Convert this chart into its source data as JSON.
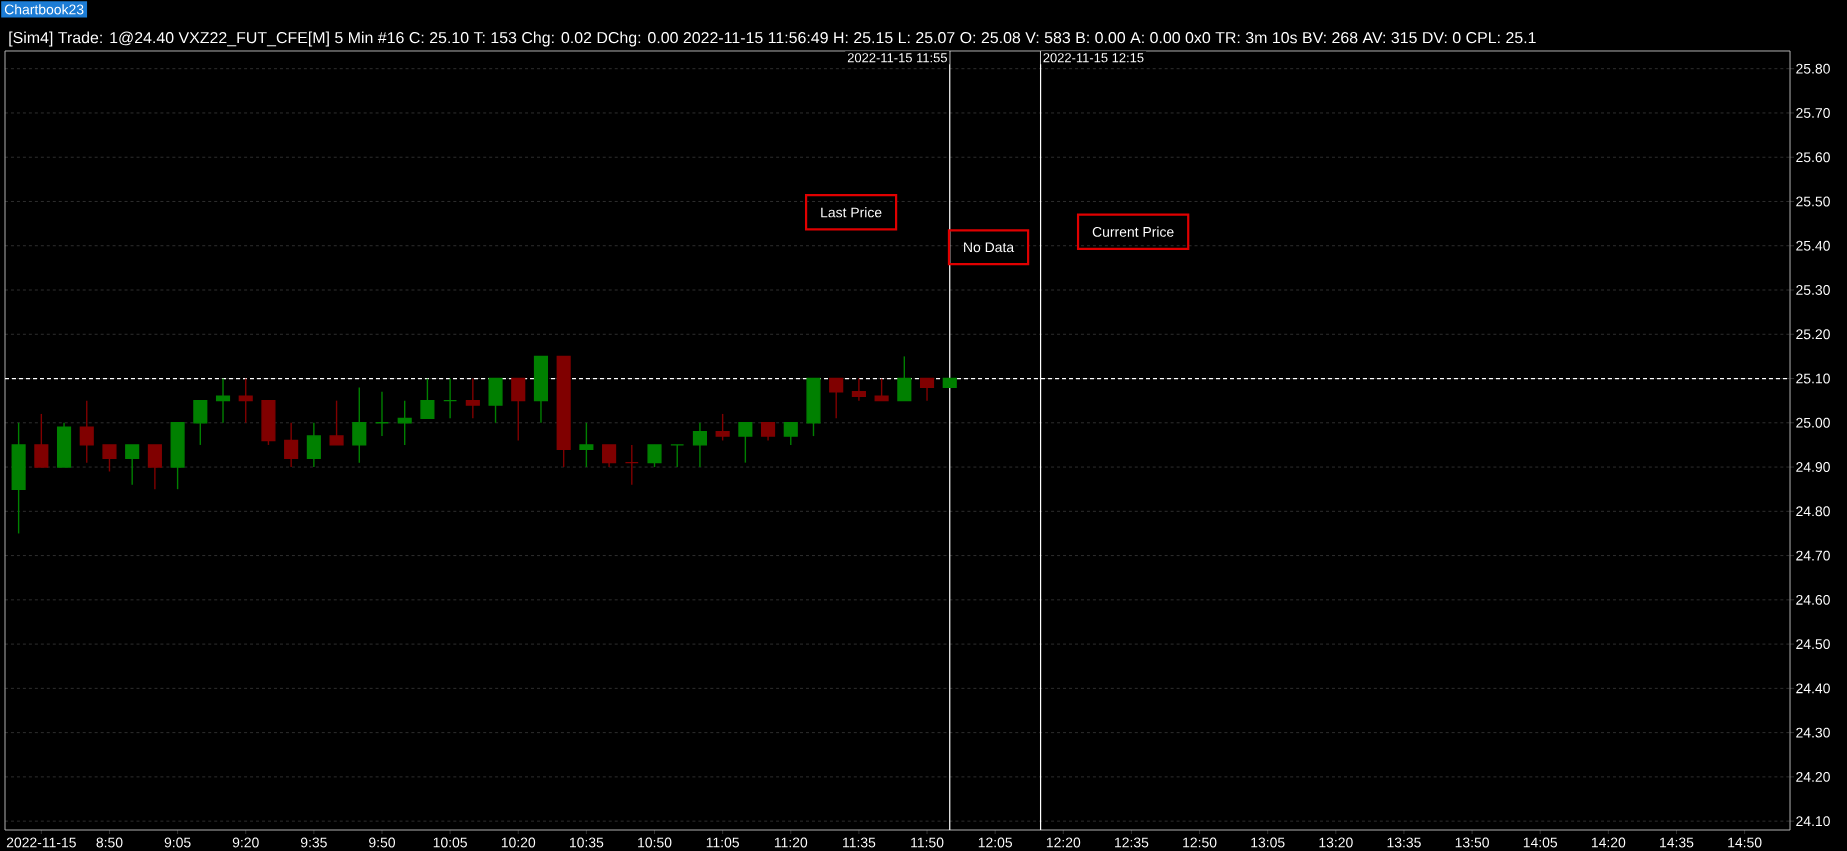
{
  "chart_data": {
    "type": "candlestick",
    "title": "Chartbook23",
    "subtitle": "[Sim4]  Trade: 1@24.40 VXZ22_FUT_CFE[M]  5 Min   #16 C: 25.10 T: 153 Chg: 0.02 DChg: 0.00 2022-11-15 11:56:49 H: 25.15 L: 25.07 O: 25.08 V: 583 B: 0.00 A: 0.00 0x0 TR: 3m 10s BV: 268 AV: 315 DV: 0 CPL: 25.1",
    "x": [
      "2022-11-15T08:30",
      "2022-11-15T08:35",
      "2022-11-15T08:40",
      "2022-11-15T08:45",
      "2022-11-15T08:50",
      "2022-11-15T08:55",
      "2022-11-15T09:00",
      "2022-11-15T09:05",
      "2022-11-15T09:10",
      "2022-11-15T09:15",
      "2022-11-15T09:20",
      "2022-11-15T09:25",
      "2022-11-15T09:30",
      "2022-11-15T09:35",
      "2022-11-15T09:40",
      "2022-11-15T09:45",
      "2022-11-15T09:50",
      "2022-11-15T09:55",
      "2022-11-15T10:00",
      "2022-11-15T10:05",
      "2022-11-15T10:10",
      "2022-11-15T10:15",
      "2022-11-15T10:20",
      "2022-11-15T10:25",
      "2022-11-15T10:30",
      "2022-11-15T10:35",
      "2022-11-15T10:40",
      "2022-11-15T10:45",
      "2022-11-15T10:50",
      "2022-11-15T10:55",
      "2022-11-15T11:00",
      "2022-11-15T11:05",
      "2022-11-15T11:10",
      "2022-11-15T11:15",
      "2022-11-15T11:20",
      "2022-11-15T11:25",
      "2022-11-15T11:30",
      "2022-11-15T11:35",
      "2022-11-15T11:40",
      "2022-11-15T11:45",
      "2022-11-15T11:50",
      "2022-11-15T11:55"
    ],
    "ohlc": [
      [
        24.85,
        25.0,
        24.75,
        24.95
      ],
      [
        24.95,
        25.02,
        24.9,
        24.9
      ],
      [
        24.9,
        25.0,
        24.9,
        24.99
      ],
      [
        24.99,
        25.05,
        24.91,
        24.95
      ],
      [
        24.95,
        24.95,
        24.89,
        24.92
      ],
      [
        24.92,
        24.95,
        24.86,
        24.95
      ],
      [
        24.95,
        24.95,
        24.85,
        24.9
      ],
      [
        24.9,
        25.0,
        24.85,
        25.0
      ],
      [
        25.0,
        25.05,
        24.95,
        25.05
      ],
      [
        25.05,
        25.1,
        25.0,
        25.06
      ],
      [
        25.06,
        25.1,
        25.0,
        25.05
      ],
      [
        25.05,
        25.05,
        24.95,
        24.96
      ],
      [
        24.96,
        25.0,
        24.9,
        24.92
      ],
      [
        24.92,
        25.0,
        24.9,
        24.97
      ],
      [
        24.97,
        25.05,
        24.95,
        24.95
      ],
      [
        24.95,
        25.08,
        24.91,
        25.0
      ],
      [
        25.0,
        25.07,
        24.97,
        25.0
      ],
      [
        25.0,
        25.05,
        24.95,
        25.01
      ],
      [
        25.01,
        25.1,
        25.01,
        25.05
      ],
      [
        25.05,
        25.1,
        25.01,
        25.05
      ],
      [
        25.05,
        25.1,
        25.01,
        25.04
      ],
      [
        25.04,
        25.1,
        25.0,
        25.1
      ],
      [
        25.1,
        25.1,
        24.96,
        25.05
      ],
      [
        25.05,
        25.15,
        25.0,
        25.15
      ],
      [
        25.15,
        25.15,
        24.9,
        24.94
      ],
      [
        24.94,
        25.0,
        24.9,
        24.95
      ],
      [
        24.95,
        24.95,
        24.9,
        24.91
      ],
      [
        24.91,
        24.95,
        24.86,
        24.91
      ],
      [
        24.91,
        24.95,
        24.9,
        24.95
      ],
      [
        24.95,
        24.95,
        24.9,
        24.95
      ],
      [
        24.95,
        25.0,
        24.9,
        24.98
      ],
      [
        24.98,
        25.02,
        24.96,
        24.97
      ],
      [
        24.97,
        25.0,
        24.91,
        25.0
      ],
      [
        25.0,
        25.0,
        24.96,
        24.97
      ],
      [
        24.97,
        25.0,
        24.95,
        25.0
      ],
      [
        25.0,
        25.1,
        24.97,
        25.1
      ],
      [
        25.1,
        25.1,
        25.01,
        25.07
      ],
      [
        25.07,
        25.1,
        25.05,
        25.06
      ],
      [
        25.06,
        25.1,
        25.05,
        25.05
      ],
      [
        25.05,
        25.15,
        25.05,
        25.1
      ],
      [
        25.1,
        25.1,
        25.05,
        25.08
      ],
      [
        25.08,
        25.1,
        25.08,
        25.1
      ]
    ],
    "colors": [
      "#008000",
      "#800000",
      "#008000",
      "#800000",
      "#800000",
      "#008000",
      "#800000",
      "#008000",
      "#008000",
      "#008000",
      "#800000",
      "#800000",
      "#800000",
      "#008000",
      "#800000",
      "#008000",
      "#008000",
      "#008000",
      "#008000",
      "#008000",
      "#800000",
      "#008000",
      "#800000",
      "#008000",
      "#800000",
      "#008000",
      "#800000",
      "#800000",
      "#008000",
      "#008000",
      "#008000",
      "#800000",
      "#008000",
      "#800000",
      "#008000",
      "#008000",
      "#800000",
      "#800000",
      "#800000",
      "#008000",
      "#800000",
      "#008000"
    ],
    "xlim": [
      "2022-11-15T08:27",
      "2022-11-15T15:00"
    ],
    "ylim": [
      24.08,
      25.84
    ],
    "xticks": [
      {
        "value": "2022-11-15T08:35",
        "label": "2022-11-15"
      },
      {
        "value": "2022-11-15T08:50",
        "label": "8:50"
      },
      {
        "value": "2022-11-15T09:05",
        "label": "9:05"
      },
      {
        "value": "2022-11-15T09:20",
        "label": "9:20"
      },
      {
        "value": "2022-11-15T09:35",
        "label": "9:35"
      },
      {
        "value": "2022-11-15T09:50",
        "label": "9:50"
      },
      {
        "value": "2022-11-15T10:05",
        "label": "10:05"
      },
      {
        "value": "2022-11-15T10:20",
        "label": "10:20"
      },
      {
        "value": "2022-11-15T10:35",
        "label": "10:35"
      },
      {
        "value": "2022-11-15T10:50",
        "label": "10:50"
      },
      {
        "value": "2022-11-15T11:05",
        "label": "11:05"
      },
      {
        "value": "2022-11-15T11:20",
        "label": "11:20"
      },
      {
        "value": "2022-11-15T11:35",
        "label": "11:35"
      },
      {
        "value": "2022-11-15T11:50",
        "label": "11:50"
      },
      {
        "value": "2022-11-15T12:05",
        "label": "12:05"
      },
      {
        "value": "2022-11-15T12:20",
        "label": "12:20"
      },
      {
        "value": "2022-11-15T12:35",
        "label": "12:35"
      },
      {
        "value": "2022-11-15T12:50",
        "label": "12:50"
      },
      {
        "value": "2022-11-15T13:05",
        "label": "13:05"
      },
      {
        "value": "2022-11-15T13:20",
        "label": "13:20"
      },
      {
        "value": "2022-11-15T13:35",
        "label": "13:35"
      },
      {
        "value": "2022-11-15T13:50",
        "label": "13:50"
      },
      {
        "value": "2022-11-15T14:05",
        "label": "14:05"
      },
      {
        "value": "2022-11-15T14:20",
        "label": "14:20"
      },
      {
        "value": "2022-11-15T14:35",
        "label": "14:35"
      },
      {
        "value": "2022-11-15T14:50",
        "label": "14:50"
      }
    ],
    "yticks": [
      {
        "value": 24.1,
        "label": "24.10"
      },
      {
        "value": 24.2,
        "label": "24.20"
      },
      {
        "value": 24.3,
        "label": "24.30"
      },
      {
        "value": 24.4,
        "label": "24.40"
      },
      {
        "value": 24.5,
        "label": "24.50"
      },
      {
        "value": 24.6,
        "label": "24.60"
      },
      {
        "value": 24.7,
        "label": "24.70"
      },
      {
        "value": 24.8,
        "label": "24.80"
      },
      {
        "value": 24.9,
        "label": "24.90"
      },
      {
        "value": 25.0,
        "label": "25.00"
      },
      {
        "value": 25.1,
        "label": "25.10"
      },
      {
        "value": 25.2,
        "label": "25.20"
      },
      {
        "value": 25.3,
        "label": "25.30"
      },
      {
        "value": 25.4,
        "label": "25.40"
      },
      {
        "value": 25.5,
        "label": "25.50"
      },
      {
        "value": 25.6,
        "label": "25.60"
      },
      {
        "value": 25.7,
        "label": "25.70"
      },
      {
        "value": 25.8,
        "label": "25.80"
      }
    ],
    "grid": "y",
    "ref_lines": [
      {
        "axis": "y",
        "value": 25.1,
        "color": "#ffffff",
        "line_style": "dashed"
      },
      {
        "axis": "x",
        "value": "2022-11-15T11:55",
        "label": "2022-11-15  11:55",
        "color": "#ffffff",
        "line_style": "solid"
      },
      {
        "axis": "x",
        "value": "2022-11-15T12:15",
        "label": "2022-11-15  12:15",
        "color": "#ffffff",
        "line_style": "solid"
      }
    ],
    "annotations": [
      "Last Price",
      "No Data",
      "Current Price"
    ]
  }
}
